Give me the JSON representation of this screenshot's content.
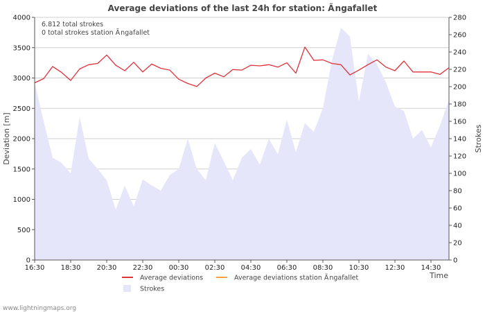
{
  "chart_data": {
    "type": "line",
    "title": "Average deviations of the last 24h for station: Ãngafallet",
    "info_lines": [
      "6.812 total strokes",
      "0 total strokes station Ãngafallet"
    ],
    "ylabel_left": "Deviation  [m]",
    "ylabel_right": "Strokes",
    "xlabel": "Time",
    "ylim_left": [
      0,
      4000
    ],
    "ylim_right": [
      0,
      280
    ],
    "yticks_left": [
      "0",
      "500",
      "1000",
      "1500",
      "2000",
      "2500",
      "3000",
      "3500",
      "4000"
    ],
    "yticks_right": [
      "0",
      "20",
      "40",
      "60",
      "80",
      "100",
      "120",
      "140",
      "160",
      "180",
      "200",
      "220",
      "240",
      "260",
      "280"
    ],
    "x_ticks": [
      "16:30",
      "18:30",
      "20:30",
      "22:30",
      "00:30",
      "02:30",
      "04:30",
      "06:30",
      "08:30",
      "10:30",
      "12:30",
      "14:30"
    ],
    "x_range_hours": [
      0,
      23
    ],
    "series": [
      {
        "name": "Average deviations",
        "color": "#e0303a",
        "axis": "left",
        "x": [
          0,
          0.5,
          1,
          1.5,
          2,
          2.5,
          3,
          3.5,
          4,
          4.5,
          5,
          5.5,
          6,
          6.5,
          7,
          7.5,
          8,
          8.5,
          9,
          9.5,
          10,
          10.5,
          11,
          11.5,
          12,
          12.5,
          13,
          13.5,
          14,
          14.5,
          15,
          15.5,
          16,
          16.5,
          17,
          17.5,
          18,
          18.5,
          19,
          19.5,
          20,
          20.5,
          21,
          21.5,
          22,
          22.5,
          23
        ],
        "values": [
          2920,
          2990,
          3190,
          3090,
          2960,
          3150,
          3220,
          3240,
          3380,
          3210,
          3120,
          3260,
          3100,
          3230,
          3160,
          3130,
          2980,
          2910,
          2860,
          3000,
          3080,
          3020,
          3140,
          3130,
          3210,
          3200,
          3220,
          3180,
          3250,
          3080,
          3510,
          3290,
          3300,
          3240,
          3220,
          3050,
          3130,
          3220,
          3300,
          3180,
          3120,
          3280,
          3100,
          3100,
          3100,
          3060,
          3170
        ]
      },
      {
        "name": "Average deviations station Ãngafallet",
        "color": "#f5a04a",
        "axis": "left",
        "x": [],
        "values": []
      },
      {
        "name": "Strokes",
        "color": "#e6e6fa",
        "axis": "right",
        "type": "area",
        "x": [
          0,
          0.5,
          1,
          1.5,
          2,
          2.5,
          3,
          3.5,
          4,
          4.5,
          5,
          5.5,
          6,
          6.5,
          7,
          7.5,
          8,
          8.5,
          9,
          9.5,
          10,
          10.5,
          11,
          11.5,
          12,
          12.5,
          13,
          13.5,
          14,
          14.5,
          15,
          15.5,
          16,
          16.5,
          17,
          17.5,
          18,
          18.5,
          19,
          19.5,
          20,
          20.5,
          21,
          21.5,
          22,
          22.5,
          23
        ],
        "values": [
          205,
          160,
          118,
          112,
          100,
          165,
          117,
          105,
          92,
          58,
          86,
          62,
          93,
          86,
          80,
          98,
          105,
          140,
          105,
          92,
          135,
          114,
          92,
          118,
          128,
          110,
          140,
          122,
          162,
          124,
          158,
          148,
          175,
          230,
          268,
          258,
          183,
          238,
          226,
          205,
          177,
          172,
          140,
          150,
          130,
          155,
          185
        ]
      }
    ],
    "legend": [
      {
        "label": "Average deviations",
        "kind": "line",
        "color": "#e0303a"
      },
      {
        "label": "Average deviations station Ãngafallet",
        "kind": "line",
        "color": "#f5a04a"
      },
      {
        "label": "Strokes",
        "kind": "area",
        "color": "#e6e6fa"
      }
    ]
  },
  "footer": "www.lightningmaps.org"
}
